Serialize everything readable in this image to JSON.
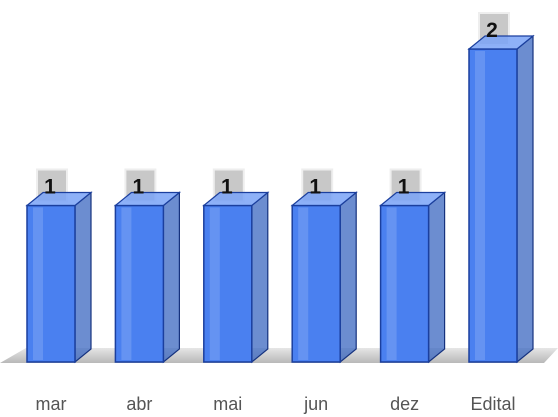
{
  "chart_data": {
    "type": "bar",
    "categories": [
      "mar",
      "abr",
      "mai",
      "jun",
      "dez",
      "Edital"
    ],
    "values": [
      1,
      1,
      1,
      1,
      1,
      2
    ],
    "color": "#4a80f0"
  }
}
